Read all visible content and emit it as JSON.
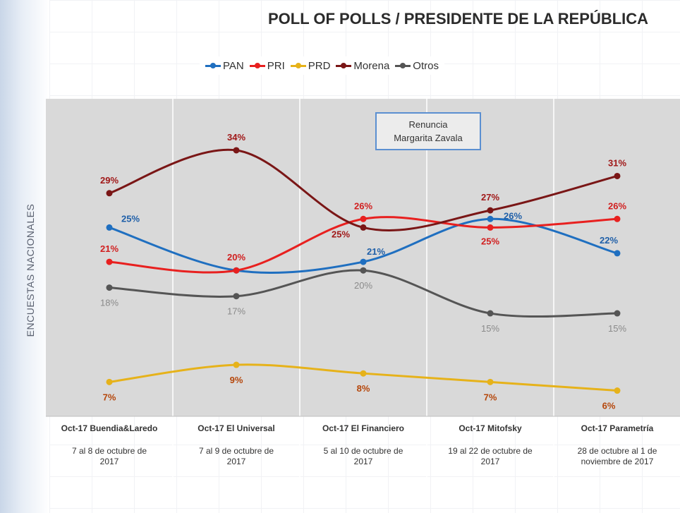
{
  "title": "POLL OF POLLS / PRESIDENTE DE LA REPÚBLICA",
  "side_label": "ENCUESTAS NACIONALES",
  "callout": {
    "line1": "Renuncia",
    "line2": "Margarita Zavala"
  },
  "legend": [
    {
      "name": "PAN",
      "color": "#1f6fc0"
    },
    {
      "name": "PRI",
      "color": "#e8201f"
    },
    {
      "name": "PRD",
      "color": "#e6b21a"
    },
    {
      "name": "Morena",
      "color": "#7a1616"
    },
    {
      "name": "Otros",
      "color": "#555555"
    }
  ],
  "columns": [
    {
      "poll": "Oct-17 Buendia&Laredo",
      "dates": "7 al 8 de octubre de 2017"
    },
    {
      "poll": "Oct-17 El Universal",
      "dates": "7 al 9 de octubre de 2017"
    },
    {
      "poll": "Oct-17 El Financiero",
      "dates": "5 al 10 de octubre de 2017"
    },
    {
      "poll": "Oct-17 Mitofsky",
      "dates": "19 al 22  de octubre de 2017"
    },
    {
      "poll": "Oct-17 Parametría",
      "dates": "28 de octubre al 1 de noviembre de 2017"
    }
  ],
  "chart_data": {
    "type": "line",
    "title": "POLL OF POLLS / PRESIDENTE DE LA REPÚBLICA",
    "categories": [
      "Oct-17 Buendia&Laredo",
      "Oct-17 El Universal",
      "Oct-17 El Financiero",
      "Oct-17 Mitofsky",
      "Oct-17 Parametría"
    ],
    "ylim": [
      3,
      40
    ],
    "grid": false,
    "legend_position": "top",
    "series": [
      {
        "name": "PAN",
        "color": "#1f6fc0",
        "values": [
          25,
          20,
          21,
          26,
          22
        ],
        "labels": [
          "25%",
          "",
          "21%",
          "26%",
          "22%"
        ]
      },
      {
        "name": "PRI",
        "color": "#e8201f",
        "values": [
          21,
          20,
          26,
          25,
          26
        ],
        "labels": [
          "21%",
          "20%",
          "26%",
          "25%",
          "26%"
        ]
      },
      {
        "name": "PRD",
        "color": "#e6b21a",
        "values": [
          7,
          9,
          8,
          7,
          6
        ],
        "labels": [
          "7%",
          "9%",
          "8%",
          "7%",
          "6%"
        ]
      },
      {
        "name": "Morena",
        "color": "#7a1616",
        "values": [
          29,
          34,
          25,
          27,
          31
        ],
        "labels": [
          "29%",
          "34%",
          "25%",
          "27%",
          "31%"
        ]
      },
      {
        "name": "Otros",
        "color": "#555555",
        "values": [
          18,
          17,
          20,
          15,
          15
        ],
        "labels": [
          "18%",
          "17%",
          "20%",
          "15%",
          "15%"
        ]
      }
    ]
  }
}
